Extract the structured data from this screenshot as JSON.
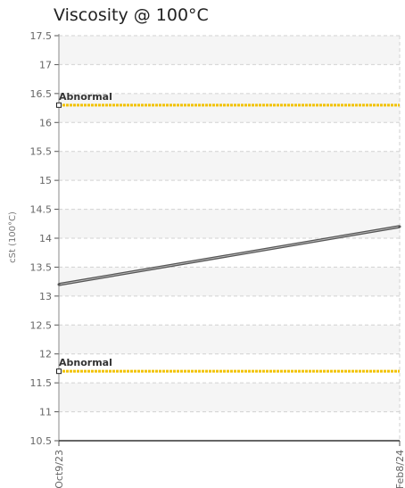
{
  "chart_data": {
    "type": "line",
    "title": "Viscosity @ 100°C",
    "xlabel": "",
    "ylabel": "cSt (100°C)",
    "ylim": [
      10.5,
      17.5
    ],
    "ytick_labels": [
      "17.5",
      "17",
      "16.5",
      "16",
      "15.5",
      "15",
      "14.5",
      "14",
      "13.5",
      "13",
      "12.5",
      "12",
      "11.5",
      "11",
      "10.5"
    ],
    "x_tick_labels": [
      "Oct9/23",
      "Feb8/24"
    ],
    "grid": true,
    "series": [
      {
        "values": [
          13.2,
          14.2
        ],
        "color": "#555555"
      }
    ],
    "reference_lines": [
      {
        "label": "Abnormal",
        "value": 16.3,
        "color": "#f2c200"
      },
      {
        "label": "Abnormal",
        "value": 11.7,
        "color": "#f2c200"
      }
    ]
  }
}
